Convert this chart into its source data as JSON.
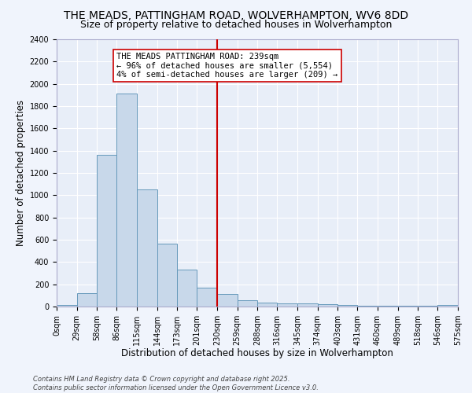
{
  "title_line1": "THE MEADS, PATTINGHAM ROAD, WOLVERHAMPTON, WV6 8DD",
  "title_line2": "Size of property relative to detached houses in Wolverhampton",
  "xlabel": "Distribution of detached houses by size in Wolverhampton",
  "ylabel": "Number of detached properties",
  "bar_color": "#c8d8ea",
  "bar_edge_color": "#6699bb",
  "background_color": "#e8eef8",
  "fig_background_color": "#f0f4fc",
  "gridcolor": "#ffffff",
  "bins": [
    0,
    29,
    58,
    86,
    115,
    144,
    173,
    201,
    230,
    259,
    288,
    316,
    345,
    374,
    403,
    431,
    460,
    489,
    518,
    546,
    575
  ],
  "bin_labels": [
    "0sqm",
    "29sqm",
    "58sqm",
    "86sqm",
    "115sqm",
    "144sqm",
    "173sqm",
    "201sqm",
    "230sqm",
    "259sqm",
    "288sqm",
    "316sqm",
    "345sqm",
    "374sqm",
    "403sqm",
    "431sqm",
    "460sqm",
    "489sqm",
    "518sqm",
    "546sqm",
    "575sqm"
  ],
  "values": [
    15,
    120,
    1360,
    1910,
    1055,
    565,
    335,
    170,
    110,
    60,
    35,
    30,
    25,
    20,
    15,
    5,
    5,
    5,
    5,
    15
  ],
  "vline_x": 230,
  "vline_color": "#cc0000",
  "annotation_text": "THE MEADS PATTINGHAM ROAD: 239sqm\n← 96% of detached houses are smaller (5,554)\n4% of semi-detached houses are larger (209) →",
  "annotation_box_color": "#ffffff",
  "annotation_box_edge": "#cc0000",
  "ylim": [
    0,
    2400
  ],
  "yticks": [
    0,
    200,
    400,
    600,
    800,
    1000,
    1200,
    1400,
    1600,
    1800,
    2000,
    2200,
    2400
  ],
  "footnote": "Contains HM Land Registry data © Crown copyright and database right 2025.\nContains public sector information licensed under the Open Government Licence v3.0.",
  "title_fontsize": 10,
  "subtitle_fontsize": 9,
  "axis_label_fontsize": 8.5,
  "tick_fontsize": 7,
  "annotation_fontsize": 7.5
}
